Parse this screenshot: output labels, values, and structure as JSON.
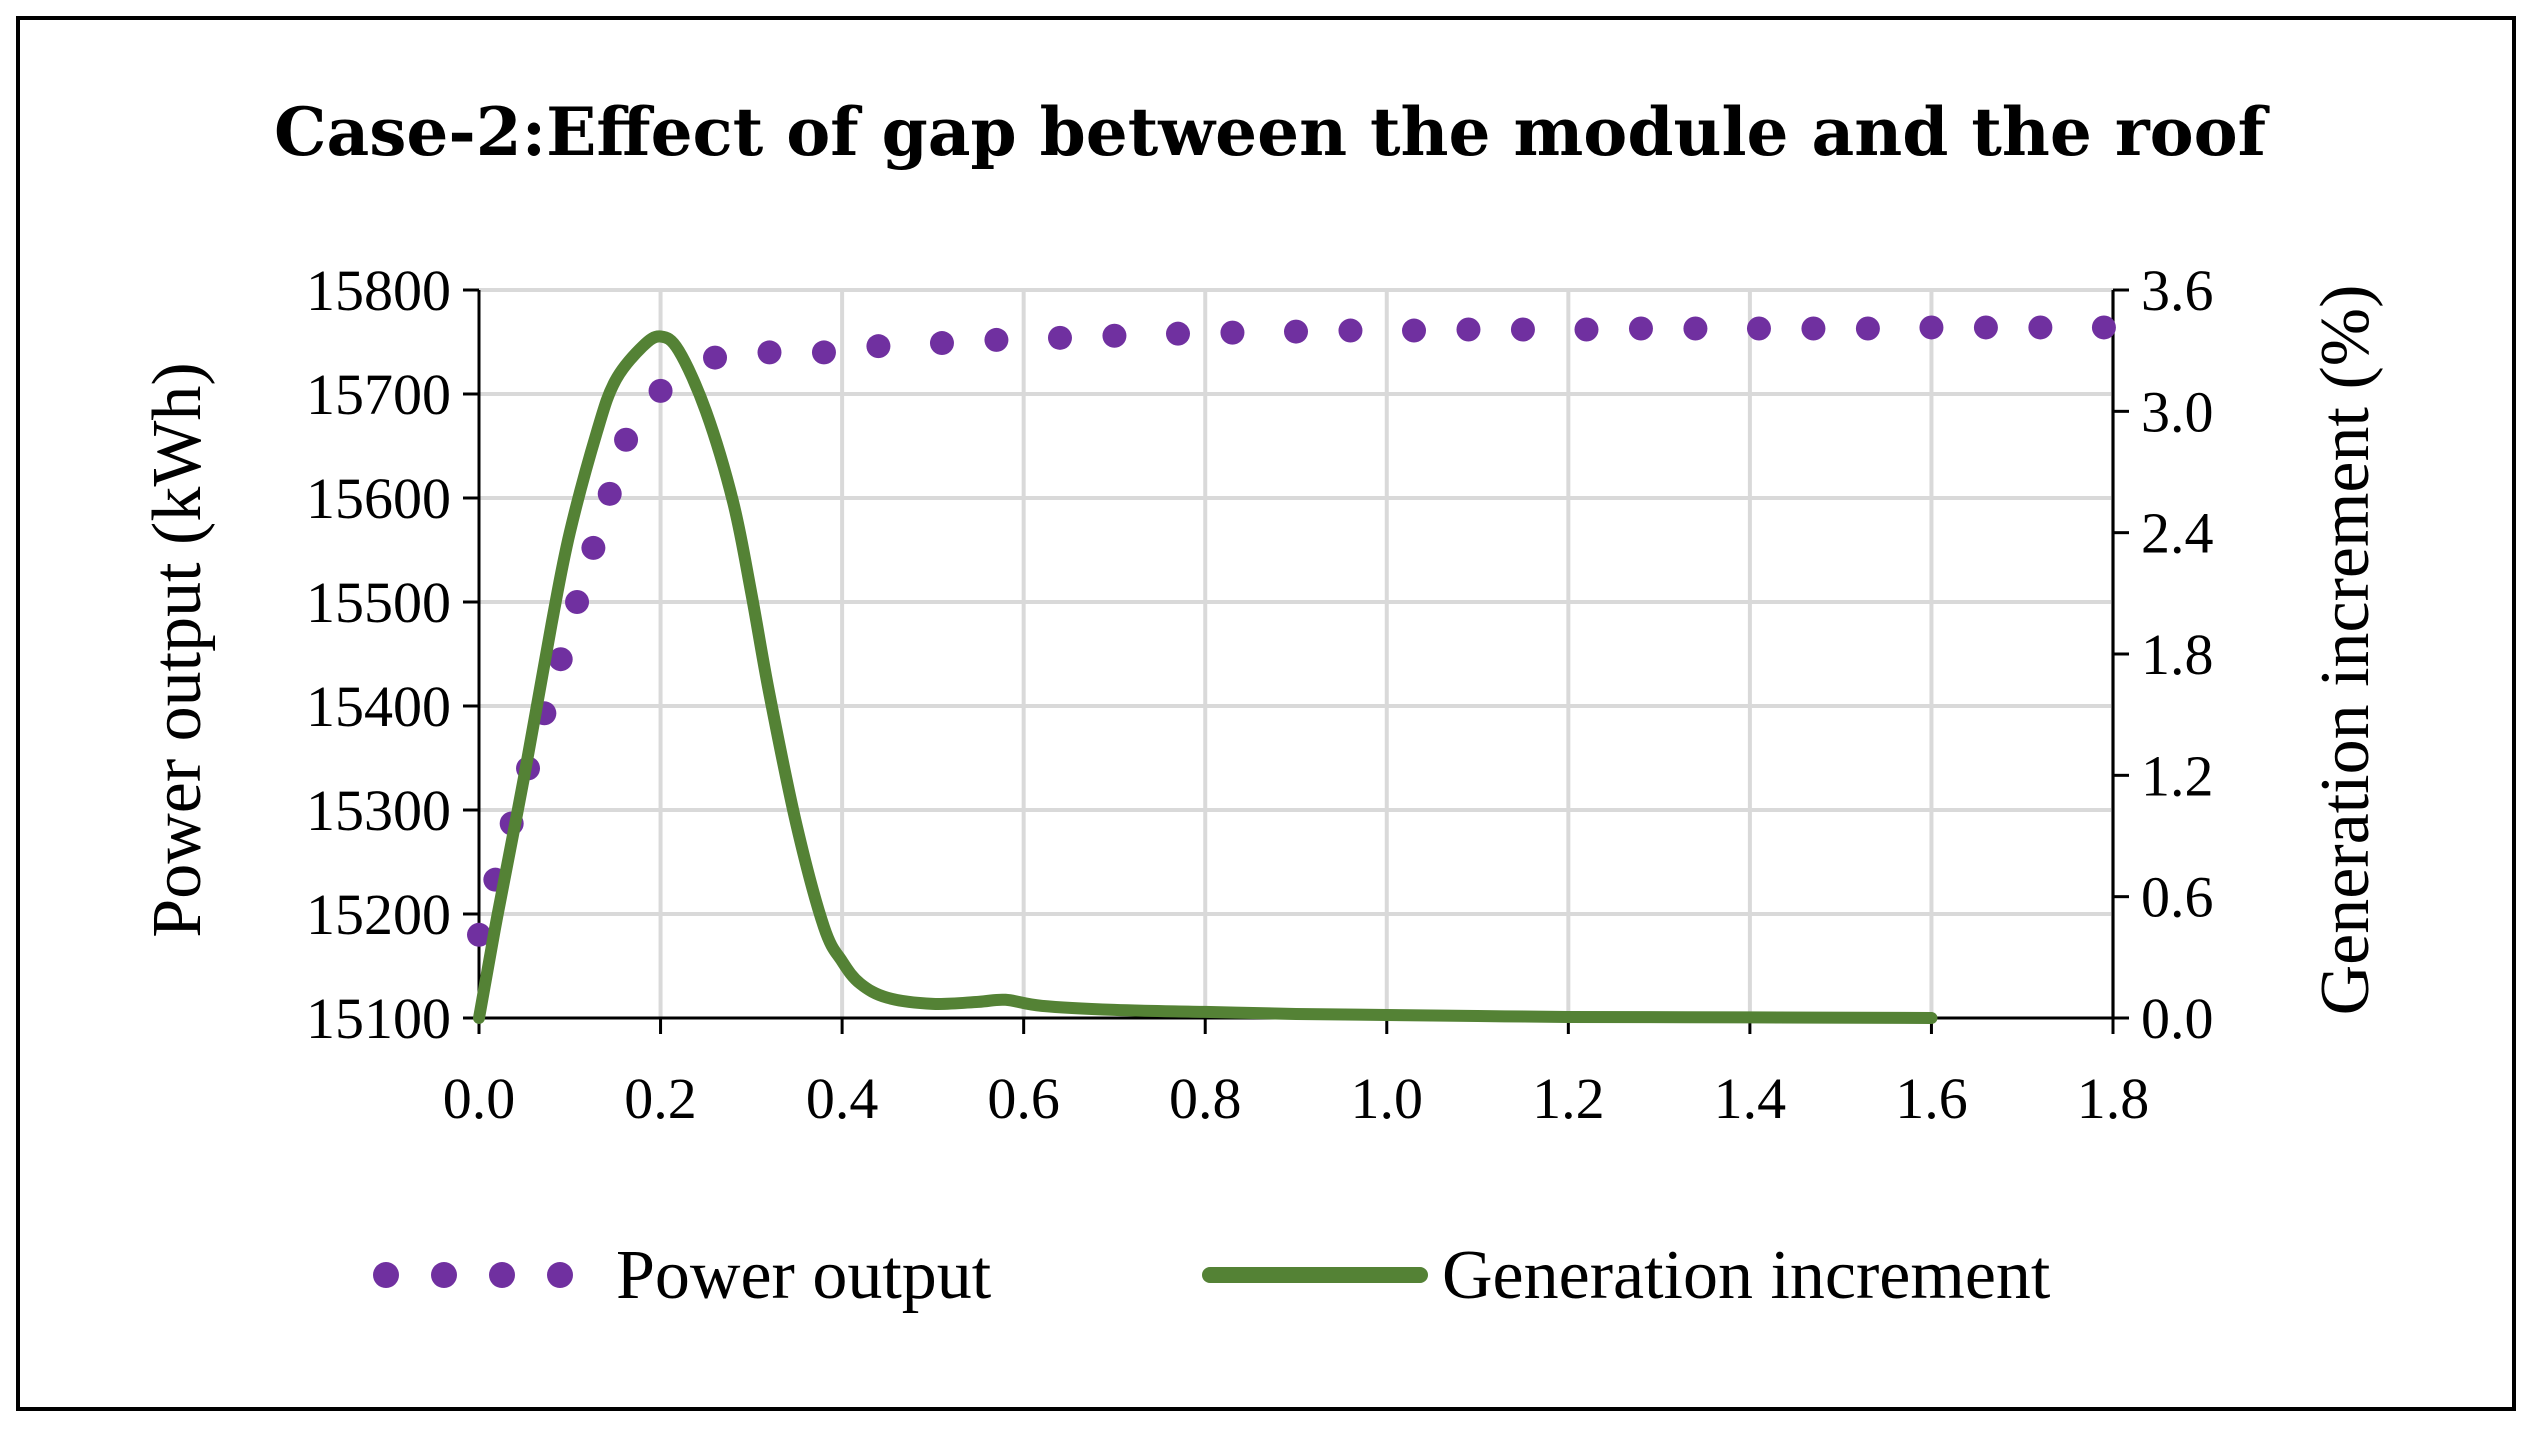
{
  "chart_data": {
    "type": "line",
    "title": "Case-2:Effect of gap between the module and the roof",
    "xlabel": "",
    "ylabel": "Power output (kWh)",
    "y2label": "Generation increment (%)",
    "xlim": [
      0,
      1.8
    ],
    "ylim": [
      15100,
      15800
    ],
    "y2lim": [
      0,
      3.6
    ],
    "x_ticks": [
      "0.0",
      "0.2",
      "0.4",
      "0.6",
      "0.8",
      "1.0",
      "1.2",
      "1.4",
      "1.6",
      "1.8"
    ],
    "y_ticks": [
      "15100",
      "15200",
      "15300",
      "15400",
      "15500",
      "15600",
      "15700",
      "15800"
    ],
    "y2_ticks": [
      "0.0",
      "0.6",
      "1.2",
      "1.8",
      "2.4",
      "3.0",
      "3.6"
    ],
    "grid": true,
    "legend_position": "bottom",
    "series": [
      {
        "name": "Power output",
        "axis": "left",
        "style": "dotted",
        "color": "#7030A0",
        "x": [
          0.0,
          0.018,
          0.036,
          0.054,
          0.072,
          0.09,
          0.108,
          0.126,
          0.144,
          0.162,
          0.2,
          0.26,
          0.32,
          0.38,
          0.44,
          0.51,
          0.57,
          0.64,
          0.7,
          0.77,
          0.83,
          0.9,
          0.96,
          1.03,
          1.09,
          1.15,
          1.22,
          1.28,
          1.34,
          1.41,
          1.47,
          1.53,
          1.6,
          1.66,
          1.72,
          1.79
        ],
        "values": [
          15180,
          15233,
          15287,
          15340,
          15393,
          15445,
          15500,
          15552,
          15604,
          15656,
          15703,
          15735,
          15740,
          15740,
          15746,
          15749,
          15752,
          15754,
          15756,
          15758,
          15759,
          15760,
          15761,
          15761,
          15762,
          15762,
          15762,
          15763,
          15763,
          15763,
          15763,
          15763,
          15764,
          15764,
          15764,
          15764
        ]
      },
      {
        "name": "Generation increment",
        "axis": "right",
        "style": "line",
        "color": "#548235",
        "x": [
          0.0,
          0.02,
          0.05,
          0.08,
          0.1,
          0.13,
          0.15,
          0.18,
          0.2,
          0.22,
          0.25,
          0.28,
          0.3,
          0.32,
          0.35,
          0.38,
          0.4,
          0.42,
          0.45,
          0.5,
          0.55,
          0.58,
          0.62,
          0.7,
          0.8,
          0.9,
          1.0,
          1.1,
          1.2,
          1.4,
          1.6
        ],
        "values": [
          0.0,
          0.5,
          1.2,
          1.95,
          2.4,
          2.9,
          3.15,
          3.32,
          3.37,
          3.3,
          3.0,
          2.55,
          2.1,
          1.6,
          0.95,
          0.45,
          0.28,
          0.17,
          0.1,
          0.07,
          0.08,
          0.09,
          0.06,
          0.04,
          0.03,
          0.02,
          0.015,
          0.01,
          0.005,
          0.003,
          0.0
        ]
      }
    ]
  }
}
